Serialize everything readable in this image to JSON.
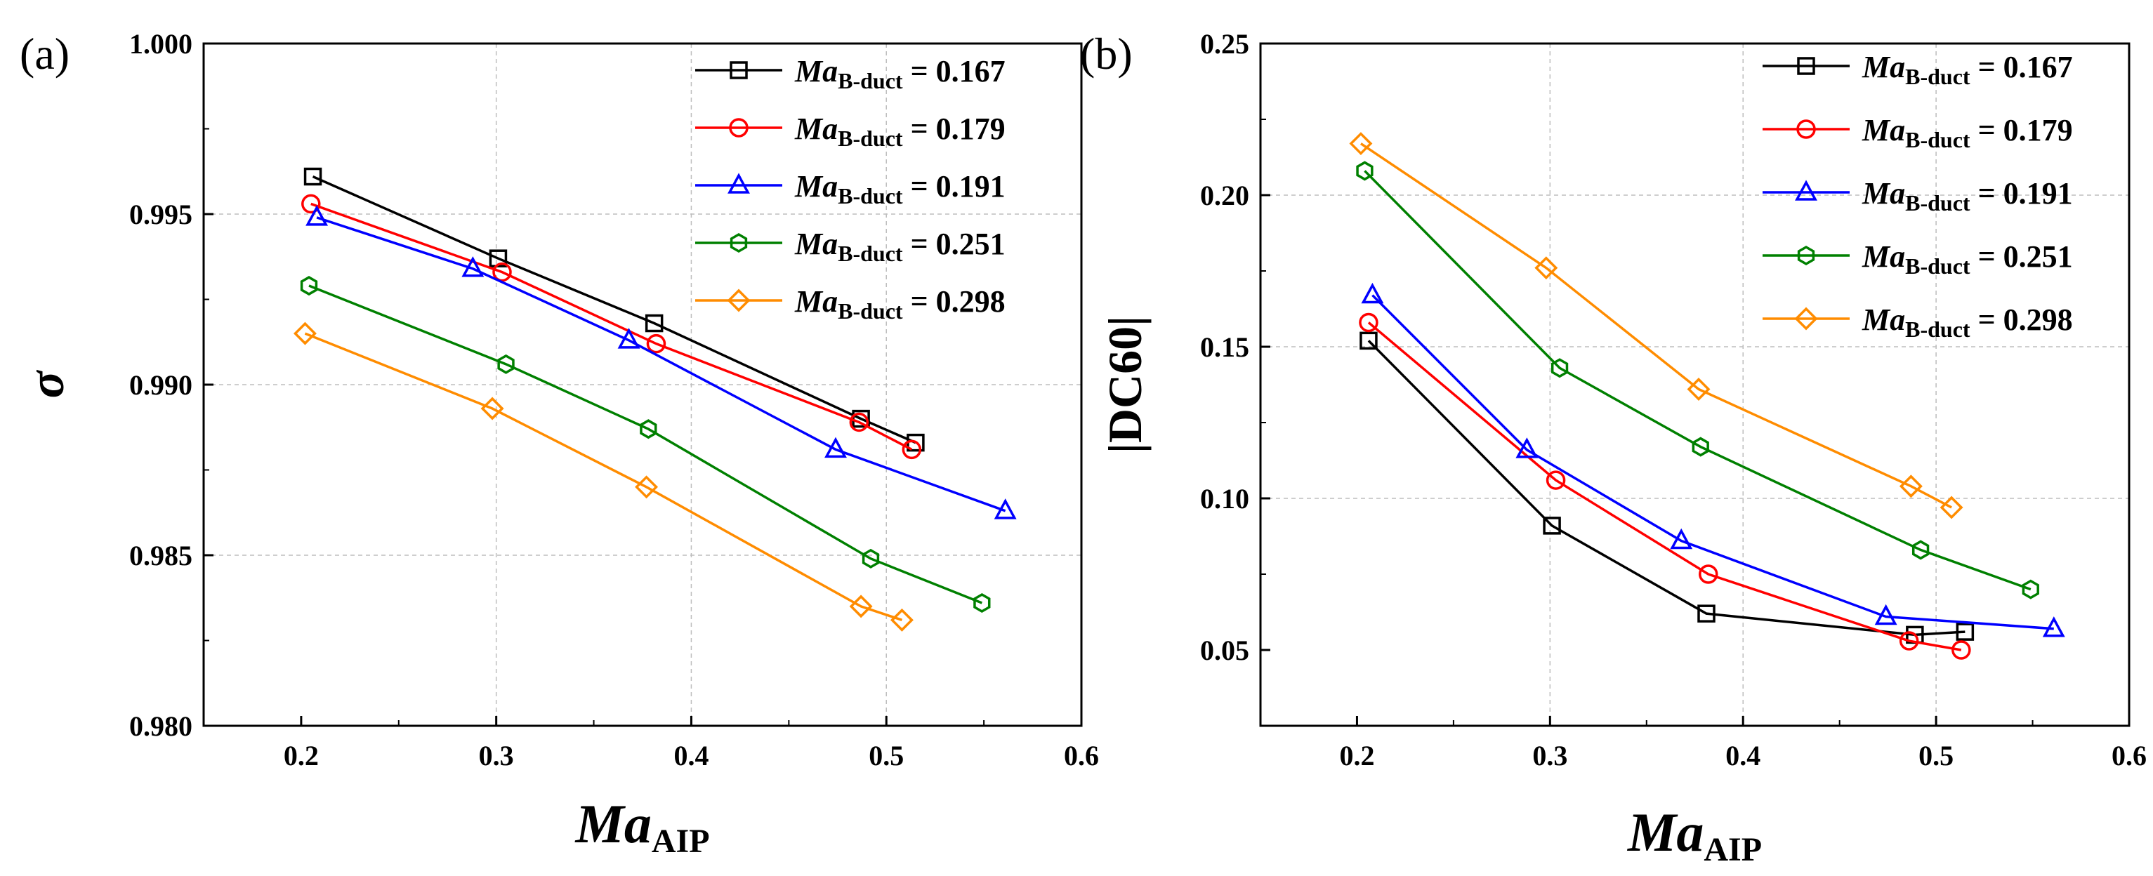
{
  "chart_data": [
    {
      "panel_label": "(a)",
      "type": "line",
      "xlabel": {
        "main": "Ma",
        "sub": "AIP"
      },
      "ylabel": "σ",
      "xlim": [
        0.15,
        0.6
      ],
      "ylim": [
        0.98,
        1.0
      ],
      "xticks": [
        "0.2",
        "0.3",
        "0.4",
        "0.5",
        "0.6"
      ],
      "yticks": [
        "0.980",
        "0.985",
        "0.990",
        "0.995",
        "1.000"
      ],
      "grid": true,
      "legend_position": "top-right",
      "series": [
        {
          "name": "Ma",
          "name_sub": "B-duct",
          "value_text": " = 0.167",
          "color": "#000000",
          "marker": "square",
          "x": [
            0.206,
            0.301,
            0.381,
            0.487,
            0.515
          ],
          "y": [
            0.9961,
            0.9937,
            0.9918,
            0.989,
            0.9883
          ]
        },
        {
          "name": "Ma",
          "name_sub": "B-duct",
          "value_text": " = 0.179",
          "color": "#ff0000",
          "marker": "circle",
          "x": [
            0.205,
            0.303,
            0.382,
            0.486,
            0.513
          ],
          "y": [
            0.9953,
            0.9933,
            0.9912,
            0.9889,
            0.9881
          ]
        },
        {
          "name": "Ma",
          "name_sub": "B-duct",
          "value_text": " = 0.191",
          "color": "#0000ff",
          "marker": "triangle",
          "x": [
            0.208,
            0.288,
            0.368,
            0.474,
            0.561
          ],
          "y": [
            0.9949,
            0.9934,
            0.9913,
            0.9881,
            0.9863
          ]
        },
        {
          "name": "Ma",
          "name_sub": "B-duct",
          "value_text": " = 0.251",
          "color": "#008000",
          "marker": "hexagon",
          "x": [
            0.204,
            0.305,
            0.378,
            0.492,
            0.549
          ],
          "y": [
            0.9929,
            0.9906,
            0.9887,
            0.9849,
            0.9836
          ]
        },
        {
          "name": "Ma",
          "name_sub": "B-duct",
          "value_text": " = 0.298",
          "color": "#ff8c00",
          "marker": "diamond",
          "x": [
            0.202,
            0.298,
            0.377,
            0.487,
            0.508
          ],
          "y": [
            0.9915,
            0.9893,
            0.987,
            0.9835,
            0.9831
          ]
        }
      ]
    },
    {
      "panel_label": "(b)",
      "type": "line",
      "xlabel": {
        "main": "Ma",
        "sub": "AIP"
      },
      "ylabel": "|DC60|",
      "xlim": [
        0.15,
        0.6
      ],
      "ylim": [
        0.025,
        0.25
      ],
      "xticks": [
        "0.2",
        "0.3",
        "0.4",
        "0.5",
        "0.6"
      ],
      "yticks": [
        "0.05",
        "0.10",
        "0.15",
        "0.20",
        "0.25"
      ],
      "grid": true,
      "legend_position": "top-right",
      "series": [
        {
          "name": "Ma",
          "name_sub": "B-duct",
          "value_text": " = 0.167",
          "color": "#000000",
          "marker": "square",
          "x": [
            0.206,
            0.301,
            0.381,
            0.489,
            0.515
          ],
          "y": [
            0.152,
            0.091,
            0.062,
            0.055,
            0.056
          ]
        },
        {
          "name": "Ma",
          "name_sub": "B-duct",
          "value_text": " = 0.179",
          "color": "#ff0000",
          "marker": "circle",
          "x": [
            0.206,
            0.303,
            0.382,
            0.486,
            0.513
          ],
          "y": [
            0.158,
            0.106,
            0.075,
            0.053,
            0.05
          ]
        },
        {
          "name": "Ma",
          "name_sub": "B-duct",
          "value_text": " = 0.191",
          "color": "#0000ff",
          "marker": "triangle",
          "x": [
            0.208,
            0.288,
            0.368,
            0.474,
            0.561
          ],
          "y": [
            0.167,
            0.116,
            0.086,
            0.061,
            0.057
          ]
        },
        {
          "name": "Ma",
          "name_sub": "B-duct",
          "value_text": " = 0.251",
          "color": "#008000",
          "marker": "hexagon",
          "x": [
            0.204,
            0.305,
            0.378,
            0.492,
            0.549
          ],
          "y": [
            0.208,
            0.143,
            0.117,
            0.083,
            0.07
          ]
        },
        {
          "name": "Ma",
          "name_sub": "B-duct",
          "value_text": " = 0.298",
          "color": "#ff8c00",
          "marker": "diamond",
          "x": [
            0.202,
            0.298,
            0.377,
            0.487,
            0.508
          ],
          "y": [
            0.217,
            0.176,
            0.136,
            0.104,
            0.097
          ]
        }
      ]
    }
  ]
}
